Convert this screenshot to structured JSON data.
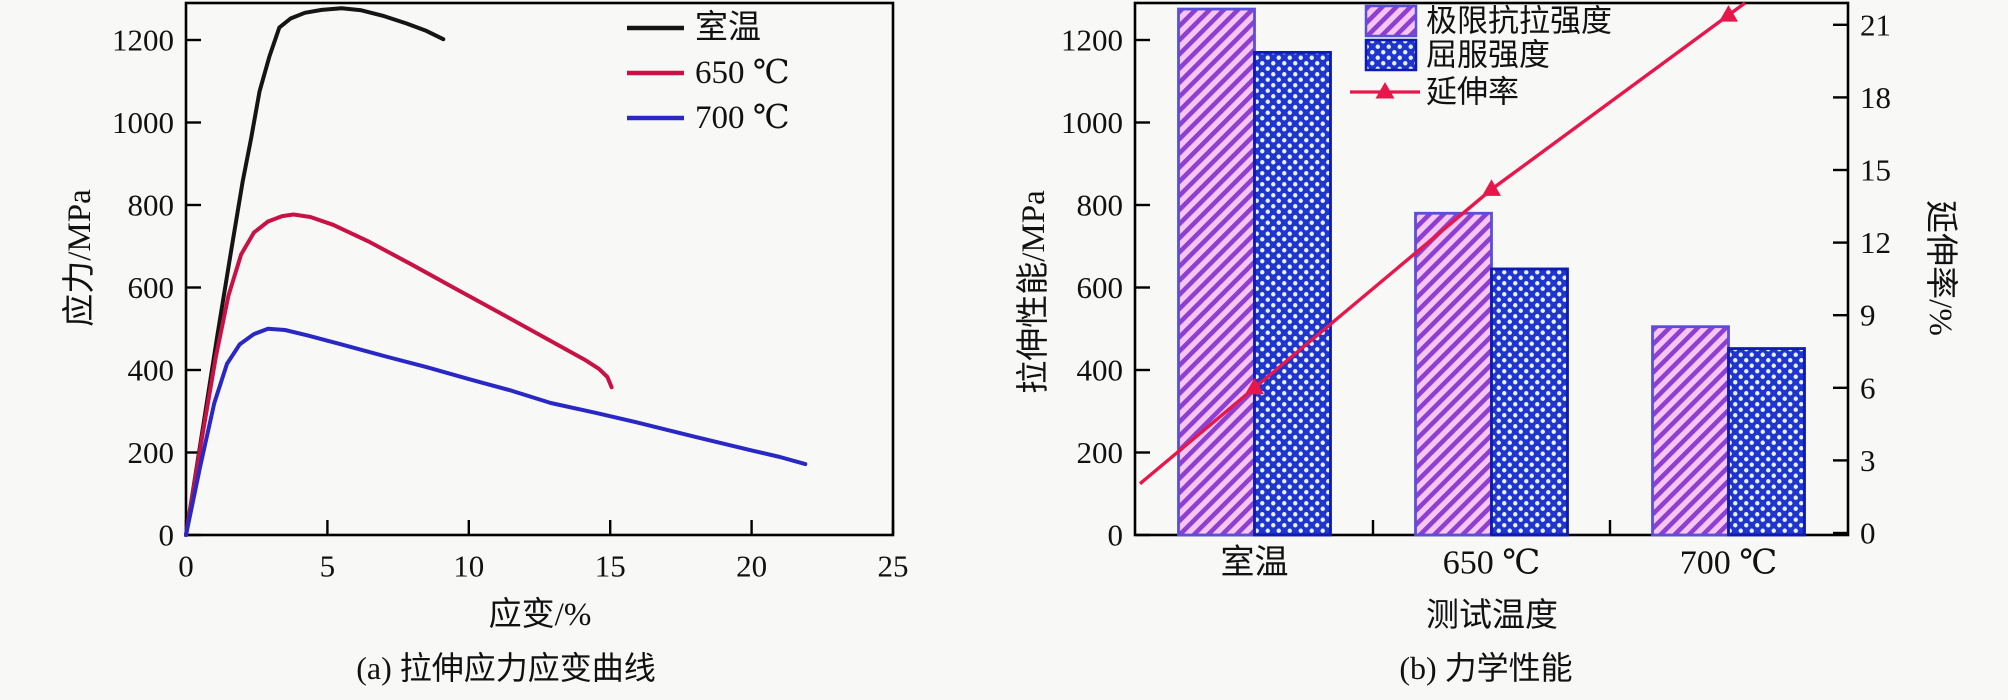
{
  "figure": {
    "background": "#f8f8f7",
    "frame_color": "#000000"
  },
  "chart_data": [
    {
      "id": "a",
      "type": "line",
      "title": "(a) 拉伸应力应变曲线",
      "xlabel": "应变/%",
      "ylabel": "应力/MPa",
      "xlim": [
        0,
        25
      ],
      "ylim": [
        0,
        1290
      ],
      "xticks": [
        0,
        5,
        10,
        15,
        20,
        25
      ],
      "yticks": [
        0,
        200,
        400,
        600,
        800,
        1000,
        1200
      ],
      "grid": false,
      "legend_position": "top-right-inside",
      "series": [
        {
          "name": "室温",
          "color": "#151515",
          "points": [
            [
              0,
              0
            ],
            [
              0.55,
              240
            ],
            [
              1.1,
              480
            ],
            [
              1.6,
              690
            ],
            [
              2.0,
              856
            ],
            [
              2.3,
              960
            ],
            [
              2.6,
              1075
            ],
            [
              2.95,
              1160
            ],
            [
              3.3,
              1230
            ],
            [
              3.7,
              1252
            ],
            [
              4.2,
              1266
            ],
            [
              4.8,
              1273
            ],
            [
              5.5,
              1277
            ],
            [
              6.2,
              1272
            ],
            [
              7.0,
              1258
            ],
            [
              7.8,
              1240
            ],
            [
              8.5,
              1222
            ],
            [
              9.1,
              1202
            ]
          ]
        },
        {
          "name": "650 ℃",
          "color": "#c81245",
          "points": [
            [
              0,
              0
            ],
            [
              0.55,
              230
            ],
            [
              1.05,
              430
            ],
            [
              1.5,
              580
            ],
            [
              1.95,
              680
            ],
            [
              2.4,
              733
            ],
            [
              2.9,
              760
            ],
            [
              3.4,
              773
            ],
            [
              3.8,
              777
            ],
            [
              4.4,
              771
            ],
            [
              5.2,
              752
            ],
            [
              6.5,
              710
            ],
            [
              8,
              655
            ],
            [
              9.5,
              598
            ],
            [
              11,
              542
            ],
            [
              12.3,
              493
            ],
            [
              13.3,
              455
            ],
            [
              14.1,
              425
            ],
            [
              14.6,
              403
            ],
            [
              14.9,
              383
            ],
            [
              15.05,
              358
            ]
          ]
        },
        {
          "name": "700 ℃",
          "color": "#2a28c4",
          "points": [
            [
              0,
              0
            ],
            [
              0.5,
              165
            ],
            [
              1.0,
              320
            ],
            [
              1.45,
              415
            ],
            [
              1.9,
              462
            ],
            [
              2.4,
              487
            ],
            [
              2.9,
              500
            ],
            [
              3.5,
              497
            ],
            [
              4.3,
              484
            ],
            [
              5.5,
              462
            ],
            [
              7,
              434
            ],
            [
              8.5,
              407
            ],
            [
              10,
              378
            ],
            [
              11.5,
              350
            ],
            [
              12.9,
              320
            ],
            [
              14.5,
              296
            ],
            [
              16,
              272
            ],
            [
              18,
              238
            ],
            [
              20,
              205
            ],
            [
              21,
              189
            ],
            [
              21.9,
              172
            ]
          ]
        }
      ]
    },
    {
      "id": "b",
      "type": "bar+line",
      "title": "(b) 力学性能",
      "xlabel": "测试温度",
      "ylabel_left": "拉伸性能/MPa",
      "ylabel_right": "延伸率/%",
      "categories": [
        "室温",
        "650 ℃",
        "700 ℃"
      ],
      "ylim_left": [
        0,
        1290
      ],
      "yticks_left": [
        0,
        200,
        400,
        600,
        800,
        1000,
        1200
      ],
      "ylim_right": [
        0,
        21.9
      ],
      "yticks_right": [
        0,
        3,
        6,
        9,
        12,
        15,
        18,
        21
      ],
      "bar_series": [
        {
          "name": "极限抗拉强度",
          "values": [
            1275,
            780,
            505
          ],
          "fill": "#f7c5f2",
          "hatch": "diagonal",
          "hatch_color": "#8d3fd2",
          "border": "#5b4fd8"
        },
        {
          "name": "屈服强度",
          "values": [
            1170,
            645,
            452
          ],
          "fill": "#1f35cd",
          "hatch": "dots",
          "hatch_color": "#e6f3ff",
          "border": "#0d1bb0"
        }
      ],
      "line_series": {
        "name": "延伸率",
        "values": [
          6.0,
          14.2,
          21.4
        ],
        "color": "#e8174b",
        "marker": "triangle-up"
      }
    }
  ]
}
